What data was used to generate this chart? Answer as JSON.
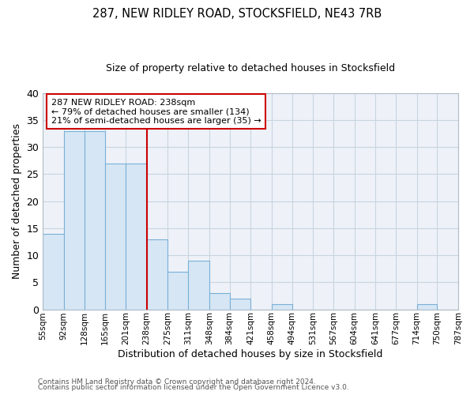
{
  "title1": "287, NEW RIDLEY ROAD, STOCKSFIELD, NE43 7RB",
  "title2": "Size of property relative to detached houses in Stocksfield",
  "xlabel": "Distribution of detached houses by size in Stocksfield",
  "ylabel": "Number of detached properties",
  "bin_edges": [
    55,
    92,
    128,
    165,
    201,
    238,
    275,
    311,
    348,
    384,
    421,
    458,
    494,
    531,
    567,
    604,
    641,
    677,
    714,
    750,
    787
  ],
  "bin_labels": [
    "55sqm",
    "92sqm",
    "128sqm",
    "165sqm",
    "201sqm",
    "238sqm",
    "275sqm",
    "311sqm",
    "348sqm",
    "384sqm",
    "421sqm",
    "458sqm",
    "494sqm",
    "531sqm",
    "567sqm",
    "604sqm",
    "641sqm",
    "677sqm",
    "714sqm",
    "750sqm",
    "787sqm"
  ],
  "counts": [
    14,
    33,
    33,
    27,
    27,
    13,
    7,
    9,
    3,
    2,
    0,
    1,
    0,
    0,
    0,
    0,
    0,
    0,
    1,
    0
  ],
  "bar_color": "#d6e6f4",
  "bar_edge_color": "#7ab0d8",
  "vline_x": 238,
  "vline_color": "#cc0000",
  "annotation_text": "287 NEW RIDLEY ROAD: 238sqm\n← 79% of detached houses are smaller (134)\n21% of semi-detached houses are larger (35) →",
  "annotation_box_color": "white",
  "annotation_box_edge_color": "#cc0000",
  "ylim": [
    0,
    40
  ],
  "yticks": [
    0,
    5,
    10,
    15,
    20,
    25,
    30,
    35,
    40
  ],
  "grid_color": "#c8d4e0",
  "plot_bg_color": "#eef2f8",
  "fig_bg_color": "#ffffff",
  "footer1": "Contains HM Land Registry data © Crown copyright and database right 2024.",
  "footer2": "Contains public sector information licensed under the Open Government Licence v3.0."
}
